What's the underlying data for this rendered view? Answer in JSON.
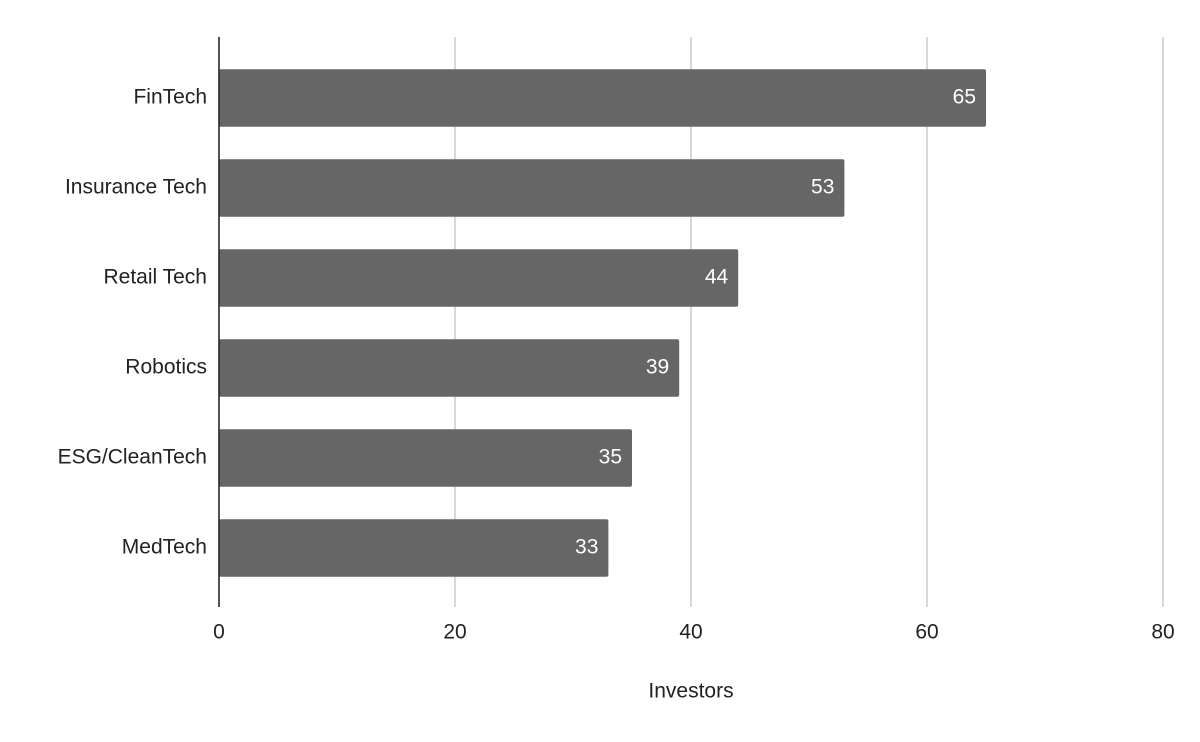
{
  "chart_data": {
    "type": "bar",
    "orientation": "horizontal",
    "x_label": "Investors",
    "categories": [
      "FinTech",
      "Insurance Tech",
      "Retail Tech",
      "Robotics",
      "ESG/CleanTech",
      "MedTech"
    ],
    "values": [
      65,
      53,
      44,
      39,
      35,
      33
    ],
    "color": "#666666",
    "xlim": [
      0,
      80
    ],
    "xticks": [
      0,
      20,
      40,
      60,
      80
    ],
    "grid": true,
    "data_labels": true
  }
}
